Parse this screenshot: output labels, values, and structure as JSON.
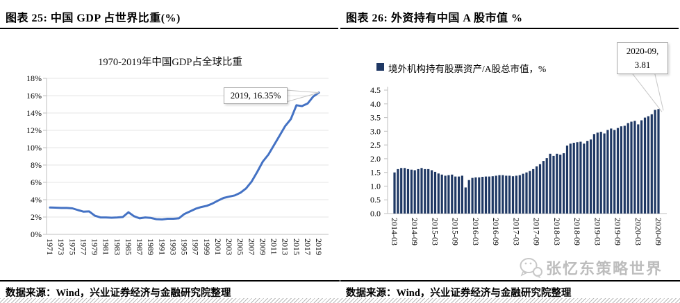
{
  "page": {
    "figure25": {
      "header": "图表 25: 中国 GDP 占世界比重(%)",
      "source": "数据来源：Wind，兴业证券经济与金融研究院整理"
    },
    "figure26": {
      "header": "图表 26: 外资持有中国 A 股市值 %",
      "source": "数据来源：Wind，兴业证券经济与金融研究院整理",
      "watermark": "张忆东策略世界"
    }
  },
  "icons": {
    "watermark_logo": "wechat-chat-bubbles-icon"
  },
  "colors": {
    "line": "#4472C4",
    "bar": "#1F3864",
    "rule": "#000000",
    "grid": "#E4E4E4",
    "axis": "#BFBFBF",
    "watermark": "#BDBDBD"
  },
  "chart_data": [
    {
      "type": "line",
      "title": "1970-2019年中国GDP占全球比重",
      "annotation": "2019, 16.35%",
      "line_color": "#4472C4",
      "ylim": [
        0,
        18
      ],
      "ytick_step": 2,
      "ytick_suffix": "%",
      "grid": true,
      "x": [
        1971,
        1972,
        1973,
        1974,
        1975,
        1976,
        1977,
        1978,
        1979,
        1980,
        1981,
        1982,
        1983,
        1984,
        1985,
        1986,
        1987,
        1988,
        1989,
        1990,
        1991,
        1992,
        1993,
        1994,
        1995,
        1996,
        1997,
        1998,
        1999,
        2000,
        2001,
        2002,
        2003,
        2004,
        2005,
        2006,
        2007,
        2008,
        2009,
        2010,
        2011,
        2012,
        2013,
        2014,
        2015,
        2016,
        2017,
        2018,
        2019
      ],
      "values": [
        3.1,
        3.08,
        3.05,
        3.05,
        3.0,
        2.8,
        2.62,
        2.65,
        2.15,
        1.95,
        1.95,
        1.92,
        1.95,
        2.0,
        2.55,
        2.1,
        1.85,
        1.95,
        1.9,
        1.75,
        1.72,
        1.8,
        1.8,
        1.85,
        2.35,
        2.65,
        2.95,
        3.15,
        3.3,
        3.55,
        3.9,
        4.2,
        4.35,
        4.5,
        4.8,
        5.3,
        6.1,
        7.2,
        8.4,
        9.2,
        10.3,
        11.4,
        12.5,
        13.3,
        14.9,
        14.8,
        15.1,
        15.9,
        16.35
      ],
      "xticks": [
        "1971",
        "1973",
        "1975",
        "1977",
        "1979",
        "1981",
        "1983",
        "1985",
        "1987",
        "1989",
        "1991",
        "1993",
        "1995",
        "1997",
        "1999",
        "2001",
        "2003",
        "2005",
        "2007",
        "2009",
        "2011",
        "2013",
        "2015",
        "2017",
        "2019"
      ]
    },
    {
      "type": "bar",
      "legend": "境外机构持有股票资产/A股总市值，%",
      "annotation": {
        "line1": "2020-09,",
        "line2": "3.81"
      },
      "bar_color": "#1F3864",
      "ylim": [
        0,
        4.5
      ],
      "ytick_step": 0.5,
      "grid": false,
      "xtick_every": 6,
      "x": [
        "2014-03",
        "2014-04",
        "2014-05",
        "2014-06",
        "2014-07",
        "2014-08",
        "2014-09",
        "2014-10",
        "2014-11",
        "2014-12",
        "2015-01",
        "2015-02",
        "2015-03",
        "2015-04",
        "2015-05",
        "2015-06",
        "2015-07",
        "2015-08",
        "2015-09",
        "2015-10",
        "2015-11",
        "2015-12",
        "2016-01",
        "2016-02",
        "2016-03",
        "2016-04",
        "2016-05",
        "2016-06",
        "2016-07",
        "2016-08",
        "2016-09",
        "2016-10",
        "2016-11",
        "2016-12",
        "2017-01",
        "2017-02",
        "2017-03",
        "2017-04",
        "2017-05",
        "2017-06",
        "2017-07",
        "2017-08",
        "2017-09",
        "2017-10",
        "2017-11",
        "2017-12",
        "2018-01",
        "2018-02",
        "2018-03",
        "2018-04",
        "2018-05",
        "2018-06",
        "2018-07",
        "2018-08",
        "2018-09",
        "2018-10",
        "2018-11",
        "2018-12",
        "2019-01",
        "2019-02",
        "2019-03",
        "2019-04",
        "2019-05",
        "2019-06",
        "2019-07",
        "2019-08",
        "2019-09",
        "2019-10",
        "2019-11",
        "2019-12",
        "2020-01",
        "2020-02",
        "2020-03",
        "2020-04",
        "2020-05",
        "2020-06",
        "2020-07",
        "2020-08",
        "2020-09"
      ],
      "values": [
        1.5,
        1.62,
        1.66,
        1.66,
        1.62,
        1.6,
        1.58,
        1.62,
        1.66,
        1.62,
        1.62,
        1.58,
        1.52,
        1.46,
        1.42,
        1.38,
        1.4,
        1.42,
        1.35,
        1.35,
        1.38,
        0.95,
        1.22,
        1.3,
        1.32,
        1.32,
        1.34,
        1.35,
        1.35,
        1.36,
        1.38,
        1.4,
        1.4,
        1.38,
        1.38,
        1.36,
        1.38,
        1.4,
        1.45,
        1.5,
        1.55,
        1.62,
        1.72,
        1.8,
        1.92,
        2.02,
        2.18,
        2.1,
        2.18,
        2.15,
        2.2,
        2.48,
        2.55,
        2.58,
        2.6,
        2.62,
        2.55,
        2.65,
        2.7,
        2.9,
        2.95,
        2.98,
        2.92,
        3.05,
        3.1,
        3.05,
        3.12,
        3.18,
        3.2,
        3.3,
        3.35,
        3.38,
        3.25,
        3.4,
        3.5,
        3.55,
        3.62,
        3.78,
        3.81
      ]
    }
  ]
}
